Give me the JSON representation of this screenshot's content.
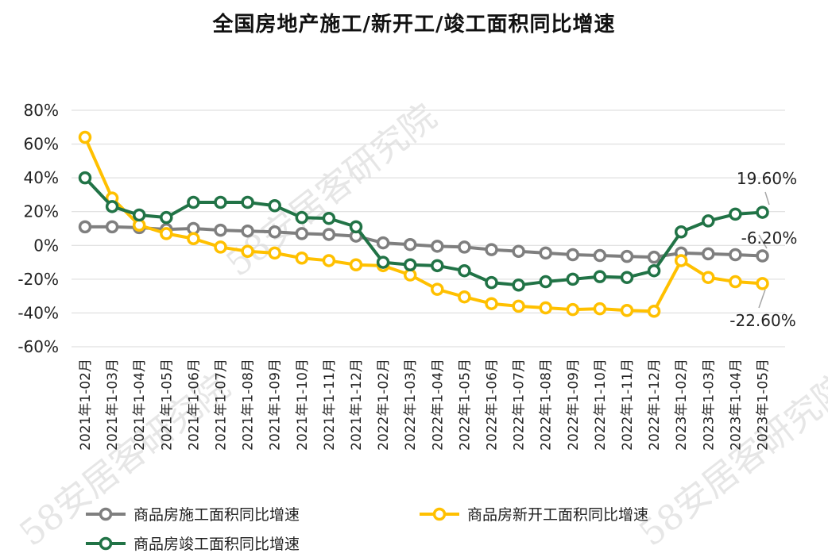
{
  "chart_data": {
    "type": "line",
    "title": "全国房地产施工/新开工/竣工面积同比增速",
    "xlabel": "",
    "ylabel": "",
    "ylim": [
      -60,
      80
    ],
    "yticks": [
      80,
      60,
      40,
      20,
      0,
      -20,
      -40,
      -60
    ],
    "ytick_labels": [
      "80%",
      "60%",
      "40%",
      "20%",
      "0%",
      "-20%",
      "-40%",
      "-60%"
    ],
    "grid": true,
    "legend_position": "bottom",
    "categories": [
      "2021年1-02月",
      "2021年1-03月",
      "2021年1-04月",
      "2021年1-05月",
      "2021年1-06月",
      "2021年1-07月",
      "2021年1-08月",
      "2021年1-09月",
      "2021年1-10月",
      "2021年1-11月",
      "2021年1-12月",
      "2022年1-02月",
      "2022年1-03月",
      "2022年1-04月",
      "2022年1-05月",
      "2022年1-06月",
      "2022年1-07月",
      "2022年1-08月",
      "2022年1-09月",
      "2022年1-10月",
      "2022年1-11月",
      "2022年1-12月",
      "2023年1-02月",
      "2023年1-03月",
      "2023年1-04月",
      "2023年1-05月"
    ],
    "series": [
      {
        "name": "商品房施工面积同比增速",
        "color": "#7f7f7f",
        "values": [
          11,
          11,
          10.5,
          9.5,
          10,
          9,
          8.5,
          8,
          7,
          6.5,
          5.5,
          1.5,
          0.5,
          -0.5,
          -1,
          -2.5,
          -3.5,
          -4.5,
          -5.5,
          -6,
          -6.5,
          -7,
          -4.5,
          -5,
          -5.5,
          -6.2
        ]
      },
      {
        "name": "商品房新开工面积同比增速",
        "color": "#ffc000",
        "values": [
          64,
          28,
          12,
          7,
          4,
          -1,
          -3.5,
          -4.5,
          -7.5,
          -9,
          -11.5,
          -12,
          -17.5,
          -26,
          -30.5,
          -34.5,
          -36,
          -37,
          -38,
          -37.5,
          -38.5,
          -39,
          -9,
          -19,
          -21.5,
          -22.6
        ]
      },
      {
        "name": "商品房竣工面积同比增速",
        "color": "#217346",
        "values": [
          40,
          23,
          18,
          16.5,
          25.5,
          25.5,
          25.5,
          23.5,
          16.5,
          16,
          11,
          -10,
          -11.5,
          -12,
          -15,
          -22,
          -23.5,
          -21.5,
          -20,
          -18.5,
          -19,
          -15,
          8,
          14.5,
          18.5,
          19.6
        ]
      }
    ],
    "annotations": [
      {
        "series": 2,
        "index": 25,
        "text": "19.60%"
      },
      {
        "series": 0,
        "index": 25,
        "text": "-6.20%"
      },
      {
        "series": 1,
        "index": 25,
        "text": "-22.60%"
      }
    ]
  },
  "watermark": "58安居客研究院"
}
